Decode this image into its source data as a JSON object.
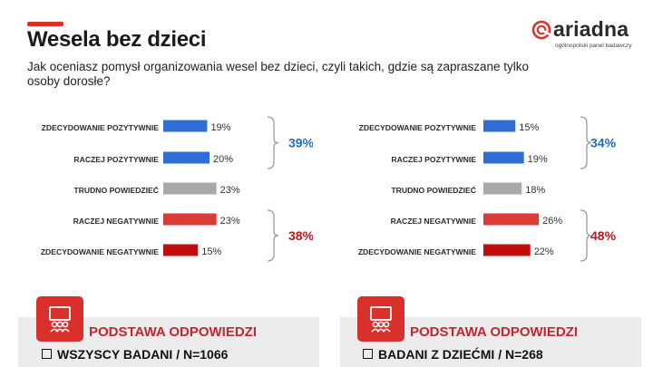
{
  "title": "Wesela bez dzieci",
  "question": "Jak oceniasz pomysł organizowania wesel bez dzieci, czyli takich, gdzie są zapraszane tylko osoby dorosłe?",
  "logo": {
    "word": "ariadna",
    "tagline": "ogólnopolski panel badawczy"
  },
  "colors": {
    "blue": "#2f6fd4",
    "gray": "#a9a9a9",
    "red": "#d93b35",
    "darkred": "#c00d0d",
    "group_positive": "#1f6cc1",
    "group_negative": "#b8191d"
  },
  "chart_data": [
    {
      "type": "bar",
      "orientation": "horizontal",
      "categories": [
        "ZDECYDOWANIE POZYTYWNIE",
        "RACZEJ POZYTYWNIE",
        "TRUDNO POWIEDZIEĆ",
        "RACZEJ NEGATYWNIE",
        "ZDECYDOWANIE NEGATYWNIE"
      ],
      "values": [
        19,
        20,
        23,
        23,
        15
      ],
      "labels": [
        "19%",
        "20%",
        "23%",
        "23%",
        "15%"
      ],
      "bar_colors": [
        "#2f6fd4",
        "#2f6fd4",
        "#a9a9a9",
        "#d93b35",
        "#c00d0d"
      ],
      "groups": [
        {
          "label": "39%",
          "from": 0,
          "to": 1,
          "color": "#1f6cc1"
        },
        {
          "label": "38%",
          "from": 3,
          "to": 4,
          "color": "#b8191d"
        }
      ]
    },
    {
      "type": "bar",
      "orientation": "horizontal",
      "categories": [
        "ZDECYDOWANIE POZYTYWNIE",
        "RACZEJ POZYTYWNIE",
        "TRUDNO POWIEDZIEĆ",
        "RACZEJ NEGATYWNIE",
        "ZDECYDOWANIE NEGATYWNIE"
      ],
      "values": [
        15,
        19,
        18,
        26,
        22
      ],
      "labels": [
        "15%",
        "19%",
        "18%",
        "26%",
        "22%"
      ],
      "bar_colors": [
        "#2f6fd4",
        "#2f6fd4",
        "#a9a9a9",
        "#d93b35",
        "#c00d0d"
      ],
      "groups": [
        {
          "label": "34%",
          "from": 0,
          "to": 1,
          "color": "#1f6cc1"
        },
        {
          "label": "48%",
          "from": 3,
          "to": 4,
          "color": "#b8191d"
        }
      ]
    }
  ],
  "bases": [
    {
      "heading": "PODSTAWA ODPOWIEDZI",
      "line": "WSZYSCY BADANI / N=1066"
    },
    {
      "heading": "PODSTAWA ODPOWIEDZI",
      "line": "BADANI Z DZIEĆMI / N=268"
    }
  ]
}
